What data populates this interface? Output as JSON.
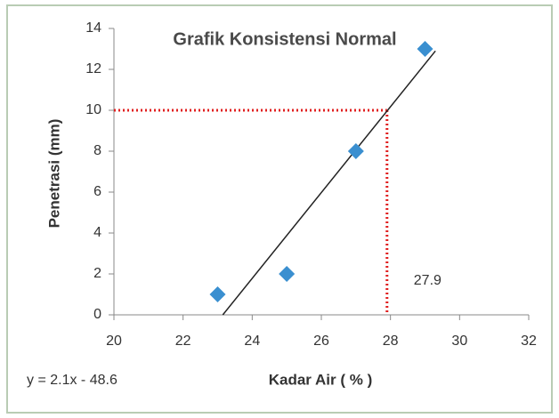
{
  "chart_data": {
    "type": "scatter",
    "title": "Grafik Konsistensi Normal",
    "xlabel": "Kadar Air ( % )",
    "ylabel": "Penetrasi (mm)",
    "equation": "y = 2.1x - 48.6",
    "x": [
      23,
      25,
      27,
      29
    ],
    "values": [
      1,
      2,
      8,
      13
    ],
    "color": "#3a8fd0",
    "trendline": {
      "x": [
        23.15,
        29.3
      ],
      "y": [
        0,
        12.9
      ],
      "color": "#222222"
    },
    "reference": {
      "x": 27.9,
      "y": 10,
      "color": "#e02020"
    },
    "xlim": [
      20,
      32
    ],
    "xticks": [
      20,
      22,
      24,
      26,
      28,
      30,
      32
    ],
    "ylim": [
      0,
      14
    ],
    "yticks": [
      0,
      2,
      4,
      6,
      8,
      10,
      12,
      14
    ],
    "grid": false
  }
}
